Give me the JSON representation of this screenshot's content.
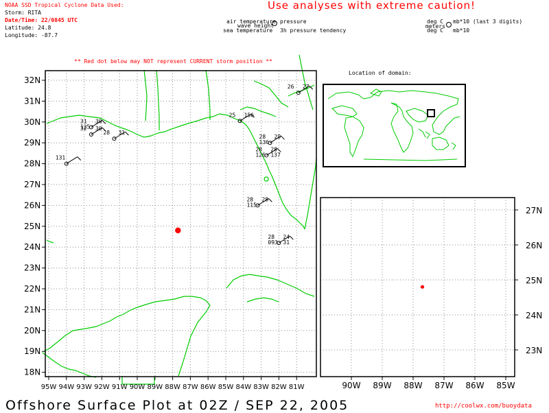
{
  "header": {
    "source_line": "NOAA SSD Tropical Cyclone Data Used:",
    "storm_line": "Storm: RITA",
    "datetime_line": "Date/Time: 22/0845 UTC",
    "latitude_line": "Latitude: 24.8",
    "longitude_line": "Longitude: -87.7",
    "caution": "Use analyses with extreme caution!",
    "red_dot_note": "** Red dot below may NOT represent CURRENT storm position **"
  },
  "legend": {
    "air_temperature": "air temperature",
    "pressure": "pressure",
    "wave_height": "wave height",
    "sea_temperature": "sea temperature",
    "pressure_tendency": "3h pressure tendency",
    "deg_c_1": "deg C",
    "mb_last3": "mb*10 (last 3 digits)",
    "meters": "meters",
    "deg_c_2": "deg C",
    "mb_x10": "mb*10"
  },
  "inset": {
    "title": "Location of domain:"
  },
  "main_map": {
    "lat_labels": [
      "32N",
      "31N",
      "30N",
      "29N",
      "28N",
      "27N",
      "26N",
      "25N",
      "24N",
      "23N",
      "22N",
      "21N",
      "20N",
      "19N",
      "18N"
    ],
    "lon_labels": [
      "95W",
      "94W",
      "93W",
      "92W",
      "91W",
      "90W",
      "89W",
      "88W",
      "87W",
      "86W",
      "85W",
      "84W",
      "83W",
      "82W",
      "81W"
    ],
    "coast_color": "#00cc00",
    "grid_color": "#888888",
    "storm_dot_color": "#ff0000"
  },
  "zoom_map": {
    "lat_labels": [
      "27N",
      "26N",
      "25N",
      "24N",
      "23N"
    ],
    "lon_labels": [
      "90W",
      "89W",
      "88W",
      "87W",
      "86W",
      "85W"
    ]
  },
  "storm_position": {
    "lat": 24.8,
    "lon": -87.7
  },
  "stations": [
    {
      "lat": 29.75,
      "lon": -92.6,
      "labels": [
        "31",
        "30",
        "125"
      ]
    },
    {
      "lat": 29.4,
      "lon": -92.6,
      "labels": [
        "32",
        "30"
      ]
    },
    {
      "lat": 29.2,
      "lon": -91.3,
      "labels": [
        "28",
        "31"
      ]
    },
    {
      "lat": 28.0,
      "lon": -94.0,
      "labels": [
        "131"
      ]
    },
    {
      "lat": 30.05,
      "lon": -84.2,
      "labels": [
        "25",
        "156"
      ]
    },
    {
      "lat": 29.0,
      "lon": -82.5,
      "labels": [
        "28",
        "29",
        "136"
      ]
    },
    {
      "lat": 28.4,
      "lon": -82.7,
      "labels": [
        "28",
        "28",
        "126",
        "137"
      ]
    },
    {
      "lat": 26.0,
      "lon": -83.2,
      "labels": [
        "28",
        "28",
        "115"
      ]
    },
    {
      "lat": 24.2,
      "lon": -82.0,
      "labels": [
        "28",
        "24",
        "093",
        "31"
      ]
    },
    {
      "lat": 31.4,
      "lon": -80.9,
      "labels": [
        "26",
        "27"
      ]
    }
  ],
  "footer": {
    "title": "Offshore Surface Plot at 02Z / SEP 22, 2005",
    "url": "http://coolwx.com/buoydata"
  }
}
